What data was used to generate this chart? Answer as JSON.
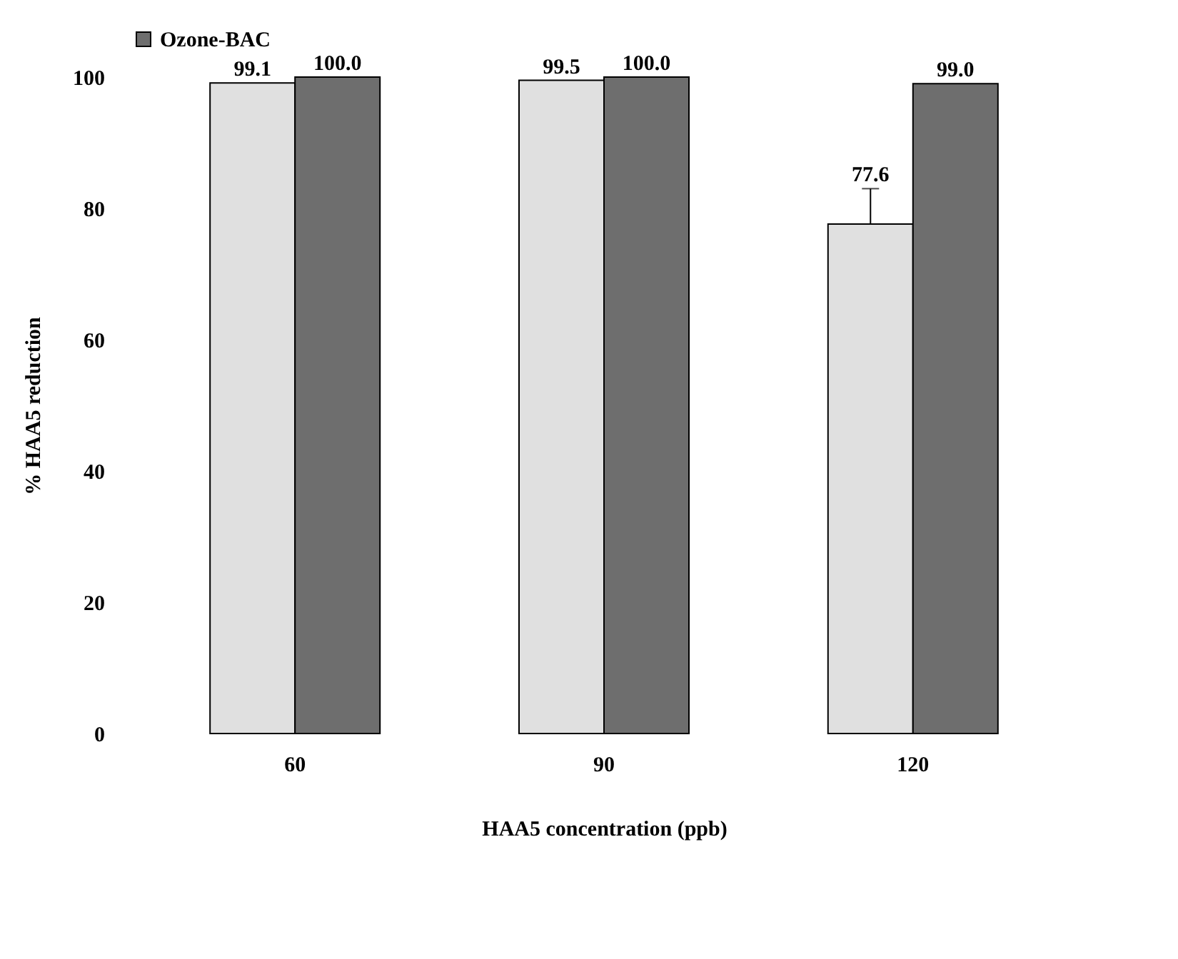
{
  "chart_data": {
    "type": "bar",
    "xlabel": "HAA5 concentration (ppb)",
    "ylabel": "% HAA5 reduction",
    "categories": [
      "60",
      "90",
      "120"
    ],
    "series": [
      {
        "color": "#e0e0e0",
        "values": [
          99.1,
          99.5,
          77.6
        ],
        "value_labels": [
          "99.1",
          "99.5",
          "77.6"
        ],
        "errors": [
          null,
          null,
          [
            77.6,
            83
          ]
        ]
      },
      {
        "name": "Ozone-BAC",
        "color": "#6e6e6e",
        "values": [
          100.0,
          100.0,
          99.0
        ],
        "value_labels": [
          "100.0",
          "100.0",
          "99.0"
        ]
      }
    ],
    "ylim": [
      0,
      100
    ],
    "yticks": [
      0,
      20,
      40,
      60,
      80,
      100
    ],
    "grid": false,
    "legend": "top"
  }
}
